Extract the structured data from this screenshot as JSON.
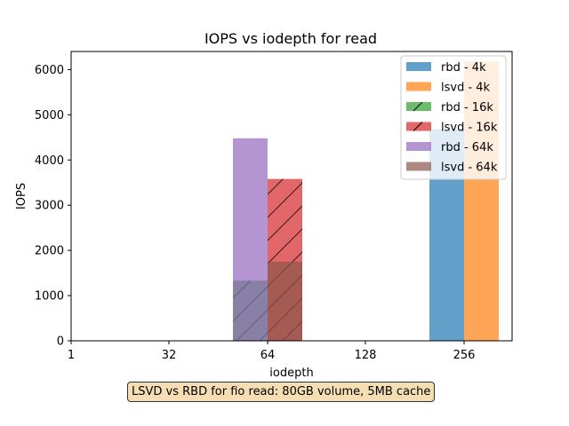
{
  "chart_data": {
    "type": "bar",
    "title": "IOPS vs iodepth for read",
    "xlabel": "iodepth",
    "ylabel": "IOPS",
    "x_ticks": [
      "1",
      "32",
      "64",
      "128",
      "256"
    ],
    "ylim": [
      0,
      6400
    ],
    "y_ticks": [
      0,
      1000,
      2000,
      3000,
      4000,
      5000,
      6000
    ],
    "grid": false,
    "legend_position": "top-right",
    "series": [
      {
        "name": "rbd - 4k",
        "color": "#1f77b4",
        "hatch": "none",
        "x": [
          "256"
        ],
        "values": [
          4680
        ]
      },
      {
        "name": "lsvd - 4k",
        "color": "#ff7f0e",
        "hatch": "none",
        "x": [
          "256"
        ],
        "values": [
          6180
        ]
      },
      {
        "name": "rbd - 16k",
        "color": "#2ca02c",
        "hatch": "diagonal",
        "x": [
          "64"
        ],
        "values": [
          1330
        ]
      },
      {
        "name": "lsvd - 16k",
        "color": "#d62728",
        "hatch": "diagonal",
        "x": [
          "64"
        ],
        "values": [
          3580
        ]
      },
      {
        "name": "rbd - 64k",
        "color": "#9467bd",
        "hatch": "none",
        "x": [
          "64"
        ],
        "values": [
          4480
        ]
      },
      {
        "name": "lsvd - 64k",
        "color": "#8c564b",
        "hatch": "none",
        "x": [
          "64"
        ],
        "values": [
          1750
        ]
      }
    ],
    "caption": "LSVD vs RBD for fio read: 80GB volume, 5MB cache"
  }
}
